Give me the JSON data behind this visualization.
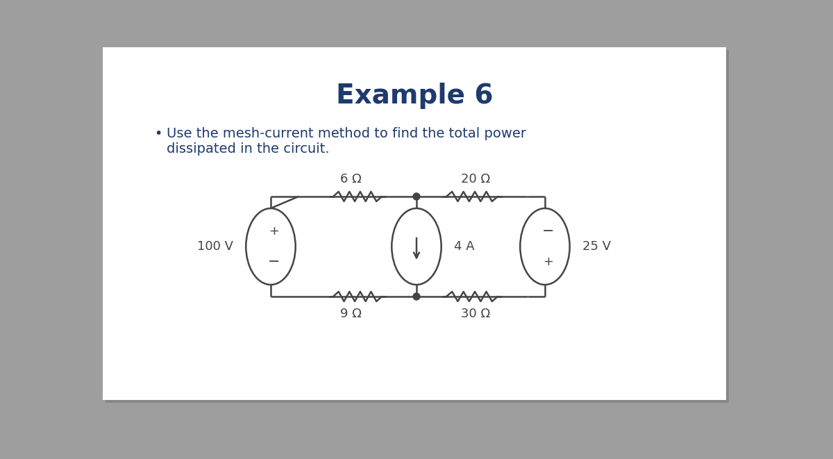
{
  "title": "Example 6",
  "subtitle_line1": "Use the mesh-current method to find the total power",
  "subtitle_line2": "dissipated in the circuit.",
  "title_color": "#1e3a6e",
  "subtitle_color": "#1e3a6e",
  "bg_outer_top": "#999999",
  "bg_outer_bot": "#b8b8b8",
  "bg_inner": "#ffffff",
  "circuit_color": "#444444",
  "title_fontsize": 28,
  "subtitle_fontsize": 14,
  "label_fontsize": 13,
  "R6_label": "6 Ω",
  "R9_label": "9 Ω",
  "R20_label": "20 Ω",
  "R30_label": "30 Ω",
  "I4_label": "4 A",
  "V100_label": "100 V",
  "V25_label": "25 V"
}
